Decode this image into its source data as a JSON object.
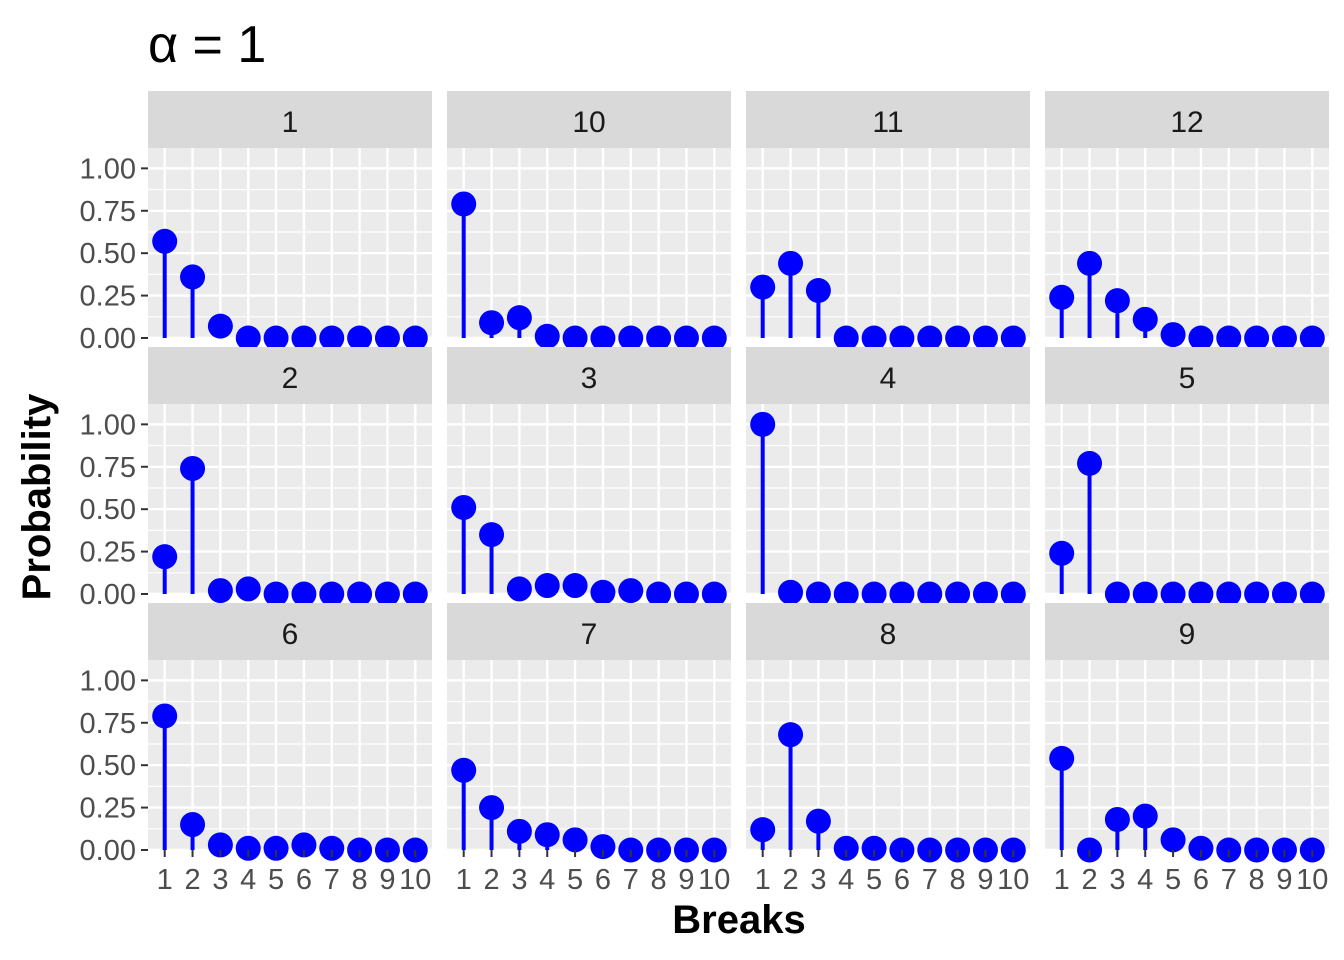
{
  "chart_data": {
    "type": "lollipop-facet",
    "title": "α = 1",
    "xlabel": "Breaks",
    "ylabel": "Probability",
    "ylim": [
      0,
      1.12
    ],
    "yticks": [
      "0.00",
      "0.25",
      "0.50",
      "0.75",
      "1.00"
    ],
    "ytick_values": [
      0,
      0.25,
      0.5,
      0.75,
      1.0
    ],
    "xticks": [
      "1",
      "2",
      "3",
      "4",
      "5",
      "6",
      "7",
      "8",
      "9",
      "10"
    ],
    "colors": {
      "mark": "#0000FF",
      "panel_bg": "#EBEBEB",
      "strip_bg": "#D9D9D9",
      "grid": "#FFFFFF"
    },
    "panels": [
      {
        "label": "1",
        "values": [
          0.57,
          0.36,
          0.07,
          0.0,
          0.0,
          0.0,
          0.0,
          0.0,
          0.0,
          0.0
        ]
      },
      {
        "label": "10",
        "values": [
          0.79,
          0.09,
          0.12,
          0.01,
          0.0,
          0.0,
          0.0,
          0.0,
          0.0,
          0.0
        ]
      },
      {
        "label": "11",
        "values": [
          0.3,
          0.44,
          0.28,
          0.0,
          0.0,
          0.0,
          0.0,
          0.0,
          0.0,
          0.0
        ]
      },
      {
        "label": "12",
        "values": [
          0.24,
          0.44,
          0.22,
          0.11,
          0.02,
          0.0,
          0.0,
          0.0,
          0.0,
          0.0
        ]
      },
      {
        "label": "2",
        "values": [
          0.22,
          0.74,
          0.02,
          0.03,
          0.0,
          0.0,
          0.0,
          0.0,
          0.0,
          0.0
        ]
      },
      {
        "label": "3",
        "values": [
          0.51,
          0.35,
          0.03,
          0.05,
          0.05,
          0.01,
          0.02,
          0.0,
          0.0,
          0.0
        ]
      },
      {
        "label": "4",
        "values": [
          1.0,
          0.01,
          0.0,
          0.0,
          0.0,
          0.0,
          0.0,
          0.0,
          0.0,
          0.0
        ]
      },
      {
        "label": "5",
        "values": [
          0.24,
          0.77,
          0.0,
          0.0,
          0.0,
          0.0,
          0.0,
          0.0,
          0.0,
          0.0
        ]
      },
      {
        "label": "6",
        "values": [
          0.79,
          0.15,
          0.03,
          0.01,
          0.01,
          0.03,
          0.01,
          0.0,
          0.0,
          0.0
        ]
      },
      {
        "label": "7",
        "values": [
          0.47,
          0.25,
          0.11,
          0.09,
          0.06,
          0.02,
          0.0,
          0.0,
          0.0,
          0.0
        ]
      },
      {
        "label": "8",
        "values": [
          0.12,
          0.68,
          0.17,
          0.01,
          0.01,
          0.0,
          0.0,
          0.0,
          0.0,
          0.0
        ]
      },
      {
        "label": "9",
        "values": [
          0.54,
          0.0,
          0.18,
          0.2,
          0.06,
          0.01,
          0.0,
          0.0,
          0.0,
          0.0
        ]
      }
    ]
  }
}
